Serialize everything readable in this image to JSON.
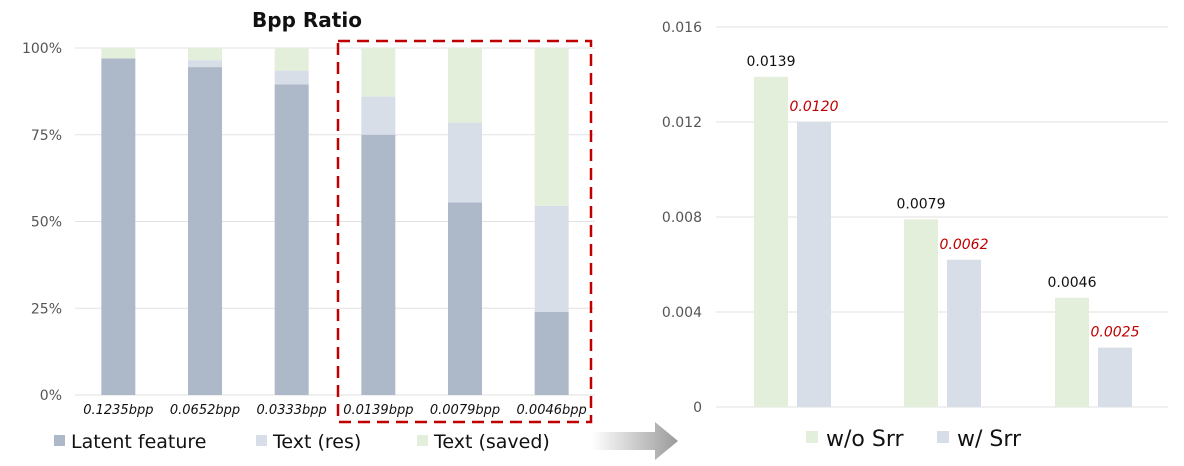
{
  "colors": {
    "latent": "#adb8c9",
    "text_res": "#d7dee8",
    "text_saved": "#e4efdb",
    "highlight_box": "#c00000",
    "grid": "#e2e2e2",
    "arrow": "#a6a6a6",
    "red_label": "#c00000"
  },
  "chart_data": [
    {
      "type": "bar",
      "stacked": true,
      "normalized": true,
      "title": "Bpp Ratio",
      "categories": [
        "0.1235bpp",
        "0.0652bpp",
        "0.0333bpp",
        "0.0139bpp",
        "0.0079bpp",
        "0.0046bpp"
      ],
      "series": [
        {
          "name": "Latent feature",
          "color_key": "latent",
          "values": [
            97,
            94.5,
            89.5,
            75,
            55.5,
            24
          ]
        },
        {
          "name": "Text (res)",
          "color_key": "text_res",
          "values": [
            0,
            2,
            4,
            11,
            23,
            30.5
          ]
        },
        {
          "name": "Text (saved)",
          "color_key": "text_saved",
          "values": [
            3,
            3.5,
            6.5,
            14,
            21.5,
            45.5
          ]
        }
      ],
      "ylim": [
        0,
        100
      ],
      "yticks": [
        0,
        25,
        50,
        75,
        100
      ],
      "ytick_labels": [
        "0%",
        "25%",
        "50%",
        "75%",
        "100%"
      ],
      "legend_position": "bottom",
      "highlight": {
        "categories": [
          "0.0139bpp",
          "0.0079bpp",
          "0.0046bpp"
        ],
        "style": "dashed red box"
      }
    },
    {
      "type": "bar",
      "categories": [
        "0.0139",
        "0.0079",
        "0.0046"
      ],
      "series": [
        {
          "name": "w/o Srr",
          "color_key": "text_saved",
          "values": [
            0.0139,
            0.0079,
            0.0046
          ],
          "labels": [
            "0.0139",
            "0.0079",
            "0.0046"
          ]
        },
        {
          "name": "w/ Srr",
          "color_key": "text_res",
          "values": [
            0.012,
            0.0062,
            0.0025
          ],
          "labels": [
            "0.0120",
            "0.0062",
            "0.0025"
          ]
        }
      ],
      "ylim": [
        0,
        0.016
      ],
      "yticks": [
        0,
        0.004,
        0.008,
        0.012,
        0.016
      ],
      "ytick_labels": [
        "0",
        "0.004",
        "0.008",
        "0.012",
        "0.016"
      ],
      "legend_position": "bottom"
    }
  ]
}
